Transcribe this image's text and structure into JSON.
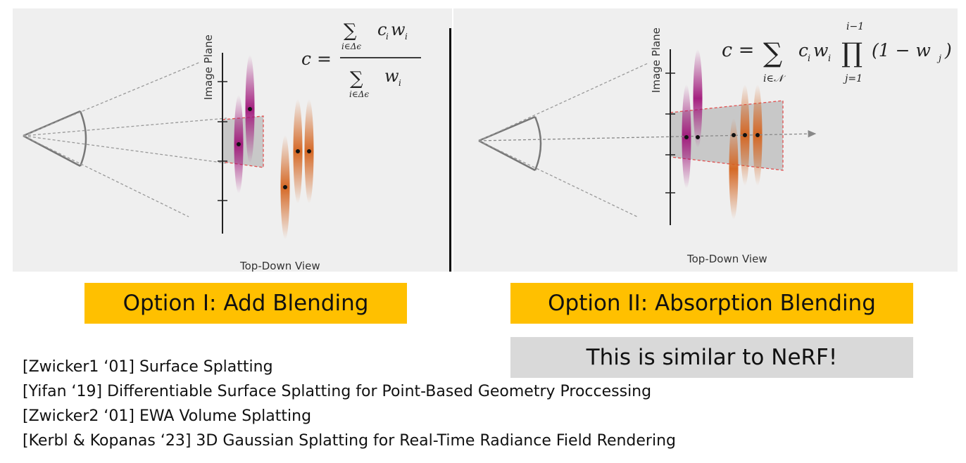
{
  "diagram": {
    "left": {
      "axis_label": "Image Plane",
      "caption": "Top-Down View",
      "formula": {
        "lhs": "c =",
        "sum": "∑",
        "num_terms": "c",
        "num_sub": "i",
        "num_w": "w",
        "num_w_sub": "i",
        "index": "i∈Δϵ",
        "den_sum": "∑",
        "den_w": "w",
        "den_w_sub": "i",
        "den_index": "i∈Δϵ"
      }
    },
    "right": {
      "axis_label": "Image Plane",
      "caption": "Top-Down View",
      "formula": {
        "lhs": "c =",
        "sum": "∑",
        "sum_index": "i∈𝒩",
        "term": "c",
        "term_sub": "i",
        "w": "w",
        "w_sub": "i",
        "prod": "∏",
        "prod_top": "i−1",
        "prod_bottom": "j=1",
        "paren": "(1 − w",
        "paren_sub": "j",
        "paren_close": ")"
      }
    },
    "colors": {
      "panel_bg": "#efefef",
      "pink": "#a0157a",
      "orange": "#d4621c",
      "frustum_fill": "#c8c8c8",
      "frustum_border": "#e05050"
    }
  },
  "options": {
    "option1": "Option I: Add Blending",
    "option2": "Option II: Absorption Blending",
    "note": "This is similar to NeRF!"
  },
  "references": [
    "[Zwicker1 ‘01] Surface Splatting",
    "[Yifan ‘19] Differentiable Surface Splatting for Point-Based Geometry Proccessing",
    "[Zwicker2 ‘01] EWA Volume Splatting",
    "[Kerbl & Kopanas ‘23] 3D Gaussian Splatting for Real-Time Radiance Field Rendering"
  ]
}
